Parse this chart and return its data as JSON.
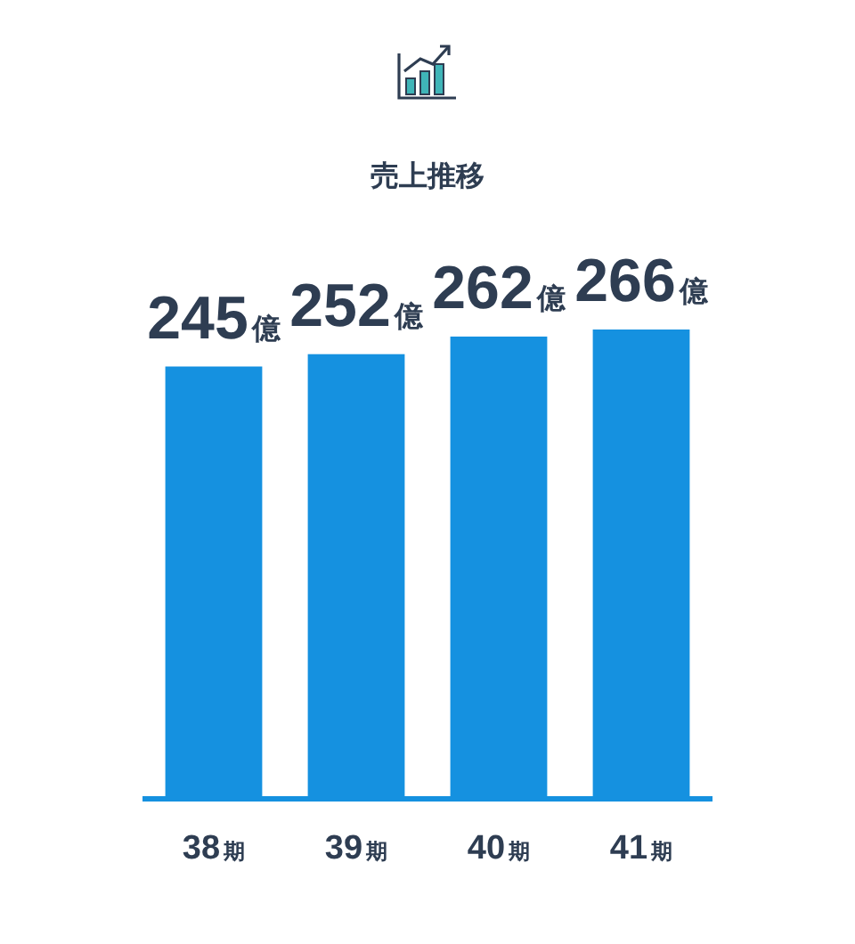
{
  "chart_data": {
    "type": "bar",
    "title": "売上推移",
    "categories": [
      "38期",
      "39期",
      "40期",
      "41期"
    ],
    "values": [
      245,
      252,
      262,
      266
    ],
    "value_labels": [
      "245億",
      "252億",
      "262億",
      "266億"
    ],
    "color": "#1591e0"
  }
}
